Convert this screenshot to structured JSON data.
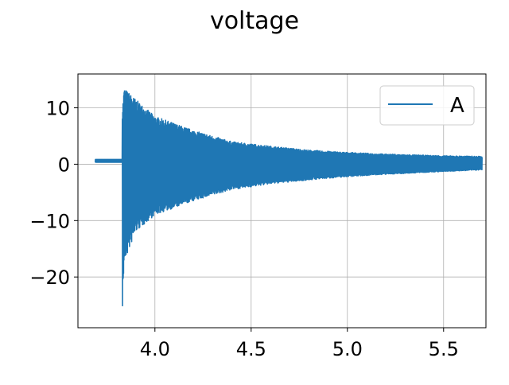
{
  "chart_data": {
    "type": "line",
    "title": "voltage",
    "xlabel": "",
    "ylabel": "",
    "xlim": [
      3.6,
      5.72
    ],
    "ylim": [
      -29,
      16
    ],
    "x_ticks": [
      4.0,
      4.5,
      5.0,
      5.5
    ],
    "x_tick_labels": [
      "4.0",
      "4.5",
      "5.0",
      "5.5"
    ],
    "y_ticks": [
      10,
      0,
      -10,
      -20
    ],
    "y_tick_labels": [
      "10",
      "0",
      "−10",
      "−20"
    ],
    "grid": true,
    "legend": {
      "position": "top-right",
      "entries": [
        "A"
      ]
    },
    "series": [
      {
        "name": "A",
        "color": "#1f77b4",
        "description_points": {
          "x_start": 3.69,
          "onset_x": 3.83,
          "x_end": 5.7,
          "pre_onset_level": 0.6,
          "envelope_x": [
            3.83,
            3.84,
            3.9,
            4.0,
            4.2,
            4.4,
            4.6,
            4.8,
            5.0,
            5.2,
            5.5,
            5.7
          ],
          "envelope_upper": [
            9.5,
            13.5,
            11.5,
            8.5,
            6.0,
            4.0,
            3.2,
            2.5,
            2.1,
            1.8,
            1.5,
            1.4
          ],
          "envelope_lower": [
            -27.0,
            -17.5,
            -12.0,
            -9.0,
            -6.5,
            -4.5,
            -3.5,
            -2.8,
            -2.2,
            -1.8,
            -1.3,
            -1.0
          ]
        }
      }
    ]
  }
}
